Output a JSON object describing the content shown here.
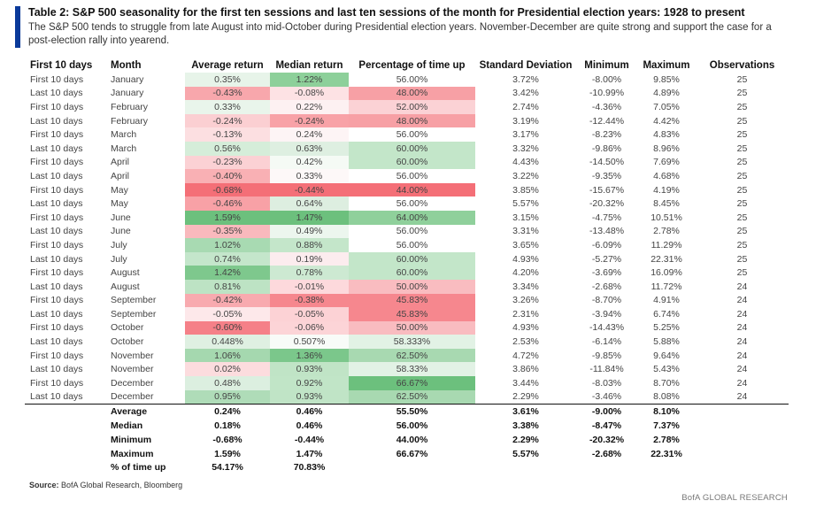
{
  "title": "Table 2: S&P 500 seasonality for the first ten sessions and last ten sessions of the month for Presidential election years: 1928 to present",
  "subtitle": "The S&P 500 tends to struggle from late August into mid-October during Presidential election years. November-December are quite strong and support the case for a post-election rally into yearend.",
  "columns": [
    "First 10 days",
    "Month",
    "Average return",
    "Median return",
    "Percentage of time up",
    "Standard Deviation",
    "Minimum",
    "Maximum",
    "Observations"
  ],
  "rows": [
    {
      "period": "First 10 days",
      "month": "January",
      "avg": "0.35%",
      "median": "1.22%",
      "pct_up": "56.00%",
      "std": "3.72%",
      "min": "-8.00%",
      "max": "9.85%",
      "obs": "25",
      "avg_bg": "#e7f4e9",
      "median_bg": "#8dd09a",
      "pct_bg": "#ffffff"
    },
    {
      "period": "Last 10 days",
      "month": "January",
      "avg": "-0.43%",
      "median": "-0.08%",
      "pct_up": "48.00%",
      "std": "3.42%",
      "min": "-10.99%",
      "max": "4.89%",
      "obs": "25",
      "avg_bg": "#f8a7ac",
      "median_bg": "#fde2e4",
      "pct_bg": "#f7a0a5"
    },
    {
      "period": "First 10 days",
      "month": "February",
      "avg": "0.33%",
      "median": "0.22%",
      "pct_up": "52.00%",
      "std": "2.74%",
      "min": "-4.36%",
      "max": "7.05%",
      "obs": "25",
      "avg_bg": "#e9f5eb",
      "median_bg": "#fdf1f2",
      "pct_bg": "#fbd2d5"
    },
    {
      "period": "Last 10 days",
      "month": "February",
      "avg": "-0.24%",
      "median": "-0.24%",
      "pct_up": "48.00%",
      "std": "3.19%",
      "min": "-12.44%",
      "max": "4.42%",
      "obs": "25",
      "avg_bg": "#fbcfd2",
      "median_bg": "#f8a2a7",
      "pct_bg": "#f7a0a5"
    },
    {
      "period": "First 10 days",
      "month": "March",
      "avg": "-0.13%",
      "median": "0.24%",
      "pct_up": "56.00%",
      "std": "3.17%",
      "min": "-8.23%",
      "max": "4.83%",
      "obs": "25",
      "avg_bg": "#fcdfe1",
      "median_bg": "#fdf4f5",
      "pct_bg": "#ffffff"
    },
    {
      "period": "Last 10 days",
      "month": "March",
      "avg": "0.56%",
      "median": "0.63%",
      "pct_up": "60.00%",
      "std": "3.32%",
      "min": "-9.86%",
      "max": "8.96%",
      "obs": "25",
      "avg_bg": "#d5edd9",
      "median_bg": "#deefe1",
      "pct_bg": "#c3e6c9"
    },
    {
      "period": "First 10 days",
      "month": "April",
      "avg": "-0.23%",
      "median": "0.42%",
      "pct_up": "60.00%",
      "std": "4.43%",
      "min": "-14.50%",
      "max": "7.69%",
      "obs": "25",
      "avg_bg": "#fbd1d4",
      "median_bg": "#f5faf5",
      "pct_bg": "#c3e6c9"
    },
    {
      "period": "Last 10 days",
      "month": "April",
      "avg": "-0.40%",
      "median": "0.33%",
      "pct_up": "56.00%",
      "std": "3.22%",
      "min": "-9.35%",
      "max": "4.68%",
      "obs": "25",
      "avg_bg": "#f9b0b4",
      "median_bg": "#fdf8f8",
      "pct_bg": "#ffffff"
    },
    {
      "period": "First 10 days",
      "month": "May",
      "avg": "-0.68%",
      "median": "-0.44%",
      "pct_up": "44.00%",
      "std": "3.85%",
      "min": "-15.67%",
      "max": "4.19%",
      "obs": "25",
      "avg_bg": "#f46f77",
      "median_bg": "#f46f77",
      "pct_bg": "#f46f77"
    },
    {
      "period": "Last 10 days",
      "month": "May",
      "avg": "-0.46%",
      "median": "0.64%",
      "pct_up": "56.00%",
      "std": "5.57%",
      "min": "-20.32%",
      "max": "8.45%",
      "obs": "25",
      "avg_bg": "#f8a1a6",
      "median_bg": "#ddeee0",
      "pct_bg": "#ffffff"
    },
    {
      "period": "First 10 days",
      "month": "June",
      "avg": "1.59%",
      "median": "1.47%",
      "pct_up": "64.00%",
      "std": "3.15%",
      "min": "-4.75%",
      "max": "10.51%",
      "obs": "25",
      "avg_bg": "#6cc07d",
      "median_bg": "#6cc07d",
      "pct_bg": "#8fd09b"
    },
    {
      "period": "Last 10 days",
      "month": "June",
      "avg": "-0.35%",
      "median": "0.49%",
      "pct_up": "56.00%",
      "std": "3.31%",
      "min": "-13.48%",
      "max": "2.78%",
      "obs": "25",
      "avg_bg": "#f9b9bd",
      "median_bg": "#ecf6ee",
      "pct_bg": "#ffffff"
    },
    {
      "period": "First 10 days",
      "month": "July",
      "avg": "1.02%",
      "median": "0.88%",
      "pct_up": "56.00%",
      "std": "3.65%",
      "min": "-6.09%",
      "max": "11.29%",
      "obs": "25",
      "avg_bg": "#a8dab2",
      "median_bg": "#c4e6ca",
      "pct_bg": "#ffffff"
    },
    {
      "period": "Last 10 days",
      "month": "July",
      "avg": "0.74%",
      "median": "0.19%",
      "pct_up": "60.00%",
      "std": "4.93%",
      "min": "-5.27%",
      "max": "22.31%",
      "obs": "25",
      "avg_bg": "#c4e6cb",
      "median_bg": "#fcecee",
      "pct_bg": "#c3e6c9"
    },
    {
      "period": "First 10 days",
      "month": "August",
      "avg": "1.42%",
      "median": "0.78%",
      "pct_up": "60.00%",
      "std": "4.20%",
      "min": "-3.69%",
      "max": "16.09%",
      "obs": "25",
      "avg_bg": "#7ec88d",
      "median_bg": "#cde9d2",
      "pct_bg": "#c3e6c9"
    },
    {
      "period": "Last 10 days",
      "month": "August",
      "avg": "0.81%",
      "median": "-0.01%",
      "pct_up": "50.00%",
      "std": "3.34%",
      "min": "-2.68%",
      "max": "11.72%",
      "obs": "24",
      "avg_bg": "#bde3c4",
      "median_bg": "#fdd9dc",
      "pct_bg": "#f9bcc0"
    },
    {
      "period": "First 10 days",
      "month": "September",
      "avg": "-0.42%",
      "median": "-0.38%",
      "pct_up": "45.83%",
      "std": "3.26%",
      "min": "-8.70%",
      "max": "4.91%",
      "obs": "24",
      "avg_bg": "#f8aaaf",
      "median_bg": "#f6878e",
      "pct_bg": "#f6878e"
    },
    {
      "period": "Last 10 days",
      "month": "September",
      "avg": "-0.05%",
      "median": "-0.05%",
      "pct_up": "45.83%",
      "std": "2.31%",
      "min": "-3.94%",
      "max": "6.74%",
      "obs": "24",
      "avg_bg": "#fde8ea",
      "median_bg": "#fcd2d5",
      "pct_bg": "#f6878e"
    },
    {
      "period": "First 10 days",
      "month": "October",
      "avg": "-0.60%",
      "median": "-0.06%",
      "pct_up": "50.00%",
      "std": "4.93%",
      "min": "-14.43%",
      "max": "5.25%",
      "obs": "24",
      "avg_bg": "#f58088",
      "median_bg": "#fcd4d7",
      "pct_bg": "#f9bcc0"
    },
    {
      "period": "Last 10 days",
      "month": "October",
      "avg": "0.448%",
      "median": "0.507%",
      "pct_up": "58.333%",
      "std": "2.53%",
      "min": "-6.14%",
      "max": "5.88%",
      "obs": "24",
      "avg_bg": "#dff0e2",
      "median_bg": "#f8fbf8",
      "pct_bg": "#e2f2e5"
    },
    {
      "period": "First 10 days",
      "month": "November",
      "avg": "1.06%",
      "median": "1.36%",
      "pct_up": "62.50%",
      "std": "4.72%",
      "min": "-9.85%",
      "max": "9.64%",
      "obs": "24",
      "avg_bg": "#a5d8af",
      "median_bg": "#7bc78b",
      "pct_bg": "#a8d9b1"
    },
    {
      "period": "Last 10 days",
      "month": "November",
      "avg": "0.02%",
      "median": "0.93%",
      "pct_up": "58.33%",
      "std": "3.86%",
      "min": "-11.84%",
      "max": "5.43%",
      "obs": "24",
      "avg_bg": "#fcdcde",
      "median_bg": "#c0e4c6",
      "pct_bg": "#e2f2e5"
    },
    {
      "period": "First 10 days",
      "month": "December",
      "avg": "0.48%",
      "median": "0.92%",
      "pct_up": "66.67%",
      "std": "3.44%",
      "min": "-8.03%",
      "max": "8.70%",
      "obs": "24",
      "avg_bg": "#dcefe0",
      "median_bg": "#c1e5c7",
      "pct_bg": "#6cc07d"
    },
    {
      "period": "Last 10 days",
      "month": "December",
      "avg": "0.95%",
      "median": "0.93%",
      "pct_up": "62.50%",
      "std": "2.29%",
      "min": "-3.46%",
      "max": "8.08%",
      "obs": "24",
      "avg_bg": "#afdcb8",
      "median_bg": "#c0e4c6",
      "pct_bg": "#a8d9b1"
    }
  ],
  "summary": [
    {
      "label": "Average",
      "avg": "0.24%",
      "median": "0.46%",
      "pct_up": "55.50%",
      "std": "3.61%",
      "min": "-9.00%",
      "max": "8.10%"
    },
    {
      "label": "Median",
      "avg": "0.18%",
      "median": "0.46%",
      "pct_up": "56.00%",
      "std": "3.38%",
      "min": "-8.47%",
      "max": "7.37%"
    },
    {
      "label": "Minimum",
      "avg": "-0.68%",
      "median": "-0.44%",
      "pct_up": "44.00%",
      "std": "2.29%",
      "min": "-20.32%",
      "max": "2.78%"
    },
    {
      "label": "Maximum",
      "avg": "1.59%",
      "median": "1.47%",
      "pct_up": "66.67%",
      "std": "5.57%",
      "min": "-2.68%",
      "max": "22.31%"
    },
    {
      "label": "% of time up",
      "avg": "54.17%",
      "median": "70.83%",
      "pct_up": "",
      "std": "",
      "min": "",
      "max": ""
    }
  ],
  "source_label": "Source:",
  "source_text": "BofA Global Research, Bloomberg",
  "brand": "BofA GLOBAL RESEARCH"
}
